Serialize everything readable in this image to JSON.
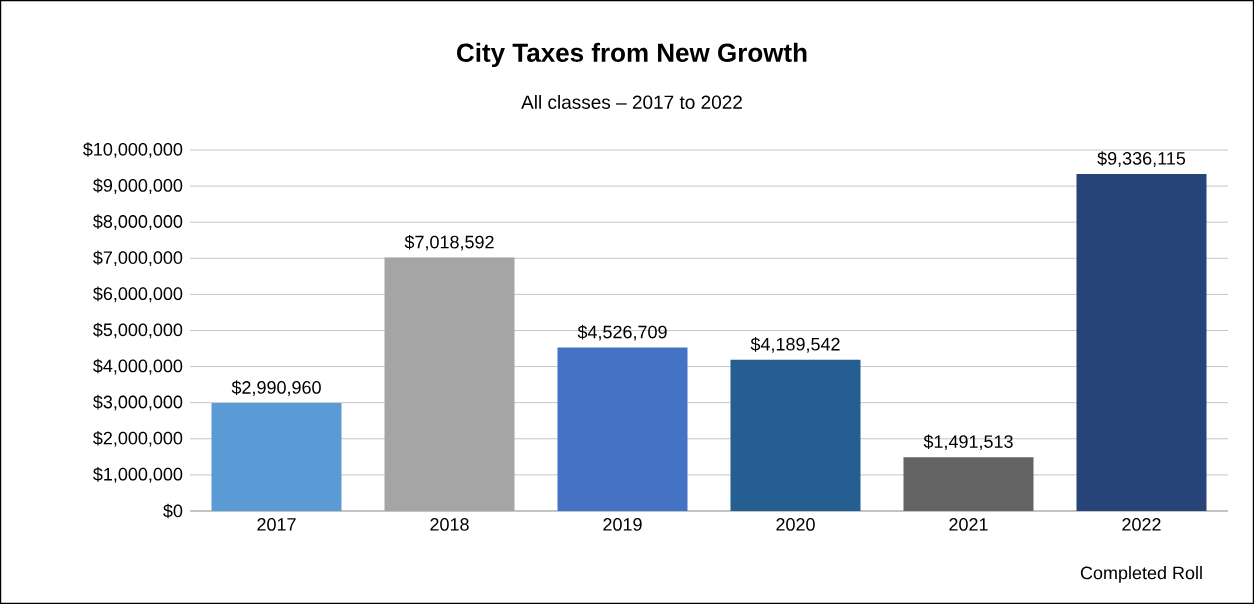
{
  "chart_data": {
    "type": "bar",
    "title": "City Taxes from New Growth",
    "subtitle": "All classes – 2017 to 2022",
    "categories": [
      "2017",
      "2018",
      "2019",
      "2020",
      "2021",
      "2022"
    ],
    "values": [
      2990960,
      7018592,
      4526709,
      4189542,
      1491513,
      9336115
    ],
    "value_labels": [
      "$2,990,960",
      "$7,018,592",
      "$4,526,709",
      "$4,189,542",
      "$1,491,513",
      "$9,336,115"
    ],
    "colors": [
      "#5b9bd5",
      "#a5a5a5",
      "#4472c4",
      "#255e91",
      "#636363",
      "#264478"
    ],
    "ylim": [
      0,
      10000000
    ],
    "yticks": [
      {
        "value": 0,
        "label": "$0"
      },
      {
        "value": 1000000,
        "label": "$1,000,000"
      },
      {
        "value": 2000000,
        "label": "$2,000,000"
      },
      {
        "value": 3000000,
        "label": "$3,000,000"
      },
      {
        "value": 4000000,
        "label": "$4,000,000"
      },
      {
        "value": 5000000,
        "label": "$5,000,000"
      },
      {
        "value": 6000000,
        "label": "$6,000,000"
      },
      {
        "value": 7000000,
        "label": "$7,000,000"
      },
      {
        "value": 8000000,
        "label": "$8,000,000"
      },
      {
        "value": 9000000,
        "label": "$9,000,000"
      },
      {
        "value": 10000000,
        "label": "$10,000,000"
      }
    ],
    "grid": "y",
    "annotations": [
      "Completed Roll"
    ]
  }
}
